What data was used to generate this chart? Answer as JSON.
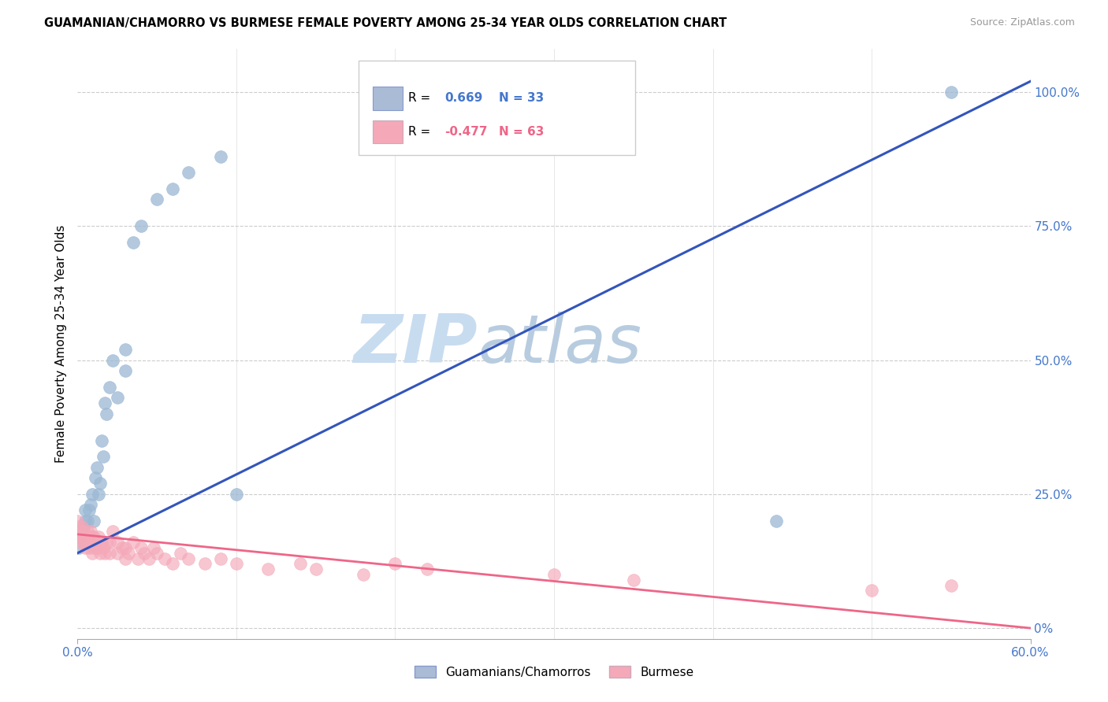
{
  "title": "GUAMANIAN/CHAMORRO VS BURMESE FEMALE POVERTY AMONG 25-34 YEAR OLDS CORRELATION CHART",
  "source": "Source: ZipAtlas.com",
  "ylabel": "Female Poverty Among 25-34 Year Olds",
  "right_yticks": [
    "0%",
    "25.0%",
    "50.0%",
    "75.0%",
    "100.0%"
  ],
  "right_ytick_vals": [
    0.0,
    0.25,
    0.5,
    0.75,
    1.0
  ],
  "guamanian_label": "Guamanians/Chamorros",
  "burmese_label": "Burmese",
  "blue_scatter_color": "#9BB8D4",
  "pink_scatter_color": "#F4A8B8",
  "blue_line_color": "#3355BB",
  "pink_line_color": "#EE6688",
  "blue_legend_color": "#AABBD6",
  "pink_legend_color": "#F4A8B8",
  "tick_label_color": "#4477CC",
  "watermark_zip_color": "#C8DCF0",
  "watermark_atlas_color": "#B8CCE0",
  "xlim": [
    0.0,
    0.6
  ],
  "ylim": [
    -0.02,
    1.08
  ],
  "legend_r1_label": "R = ",
  "legend_r1_val": "0.669",
  "legend_n1": "N = 33",
  "legend_r2_label": "R = ",
  "legend_r2_val": "-0.477",
  "legend_n2": "N = 63",
  "guamanian_x": [
    0.001,
    0.002,
    0.003,
    0.004,
    0.005,
    0.005,
    0.006,
    0.007,
    0.008,
    0.009,
    0.01,
    0.011,
    0.012,
    0.013,
    0.014,
    0.015,
    0.016,
    0.017,
    0.018,
    0.02,
    0.022,
    0.025,
    0.03,
    0.03,
    0.035,
    0.04,
    0.05,
    0.06,
    0.07,
    0.09,
    0.1,
    0.44,
    0.55
  ],
  "guamanian_y": [
    0.15,
    0.17,
    0.18,
    0.19,
    0.2,
    0.22,
    0.2,
    0.22,
    0.23,
    0.25,
    0.2,
    0.28,
    0.3,
    0.25,
    0.27,
    0.35,
    0.32,
    0.42,
    0.4,
    0.45,
    0.5,
    0.43,
    0.48,
    0.52,
    0.72,
    0.75,
    0.8,
    0.82,
    0.85,
    0.88,
    0.25,
    0.2,
    1.0
  ],
  "burmese_x": [
    0.0,
    0.0,
    0.001,
    0.001,
    0.002,
    0.002,
    0.003,
    0.003,
    0.004,
    0.004,
    0.005,
    0.005,
    0.006,
    0.006,
    0.007,
    0.007,
    0.008,
    0.008,
    0.009,
    0.009,
    0.01,
    0.01,
    0.011,
    0.012,
    0.013,
    0.014,
    0.015,
    0.016,
    0.017,
    0.018,
    0.02,
    0.02,
    0.022,
    0.025,
    0.025,
    0.028,
    0.03,
    0.03,
    0.032,
    0.035,
    0.038,
    0.04,
    0.042,
    0.045,
    0.048,
    0.05,
    0.055,
    0.06,
    0.065,
    0.07,
    0.08,
    0.09,
    0.1,
    0.12,
    0.14,
    0.15,
    0.18,
    0.2,
    0.22,
    0.3,
    0.35,
    0.5,
    0.55
  ],
  "burmese_y": [
    0.18,
    0.2,
    0.17,
    0.19,
    0.16,
    0.18,
    0.17,
    0.19,
    0.16,
    0.18,
    0.15,
    0.17,
    0.16,
    0.18,
    0.15,
    0.17,
    0.16,
    0.18,
    0.14,
    0.17,
    0.15,
    0.17,
    0.16,
    0.15,
    0.17,
    0.14,
    0.16,
    0.15,
    0.14,
    0.16,
    0.14,
    0.16,
    0.18,
    0.14,
    0.16,
    0.15,
    0.13,
    0.15,
    0.14,
    0.16,
    0.13,
    0.15,
    0.14,
    0.13,
    0.15,
    0.14,
    0.13,
    0.12,
    0.14,
    0.13,
    0.12,
    0.13,
    0.12,
    0.11,
    0.12,
    0.11,
    0.1,
    0.12,
    0.11,
    0.1,
    0.09,
    0.07,
    0.08
  ],
  "blue_line_x0": 0.0,
  "blue_line_y0": 0.14,
  "blue_line_x1": 0.6,
  "blue_line_y1": 1.02,
  "pink_line_x0": 0.0,
  "pink_line_y0": 0.175,
  "pink_line_x1": 0.6,
  "pink_line_y1": 0.0
}
